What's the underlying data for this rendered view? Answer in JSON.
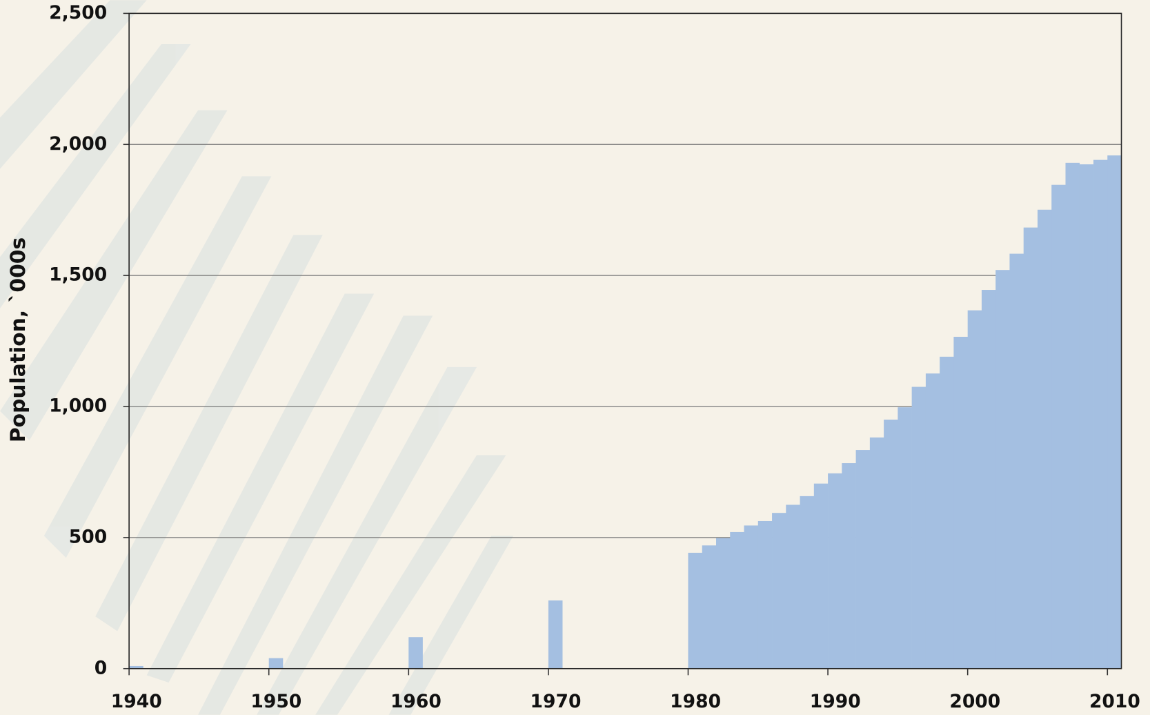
{
  "chart_data": {
    "type": "bar",
    "y_label": "Population, `000s",
    "x": [
      1940,
      1950,
      1960,
      1970,
      1980,
      1981,
      1982,
      1983,
      1984,
      1985,
      1986,
      1987,
      1988,
      1989,
      1990,
      1991,
      1992,
      1993,
      1994,
      1995,
      1996,
      1997,
      1998,
      1999,
      2000,
      2001,
      2002,
      2003,
      2004,
      2005,
      2006,
      2007,
      2008,
      2009,
      2010
    ],
    "values": [
      10,
      40,
      120,
      260,
      442,
      470,
      498,
      521,
      546,
      563,
      594,
      625,
      658,
      706,
      745,
      784,
      834,
      882,
      950,
      997,
      1075,
      1126,
      1190,
      1266,
      1367,
      1445,
      1521,
      1583,
      1683,
      1751,
      1846,
      1930,
      1924,
      1941,
      1958
    ],
    "color": "#a4bfe1",
    "xlim": [
      1940,
      2011
    ],
    "xticks": [
      1940,
      1950,
      1960,
      1970,
      1980,
      1990,
      2000,
      2010
    ],
    "ylim": [
      0,
      2500
    ],
    "yticks": [
      0,
      500,
      {
        "value": 1000,
        "label": "1,000"
      },
      {
        "value": 1500,
        "label": "1,500"
      },
      {
        "value": 2000,
        "label": "2,000"
      },
      {
        "value": 2500,
        "label": "2,500"
      }
    ],
    "grid": true
  }
}
